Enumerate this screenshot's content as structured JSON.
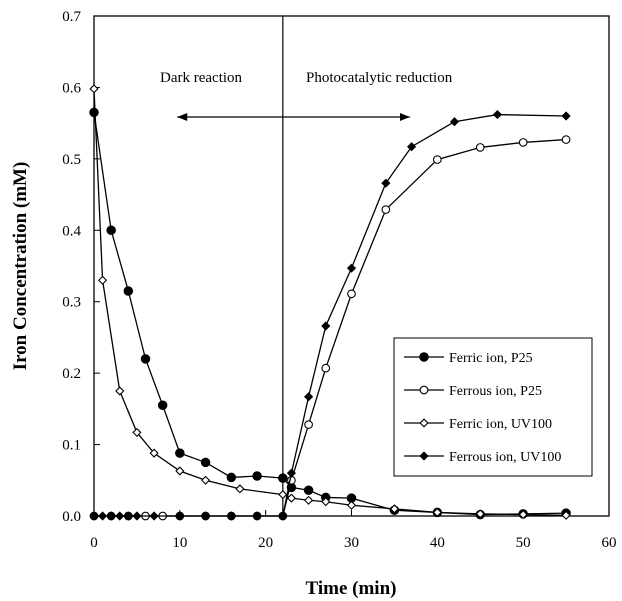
{
  "chart_data": {
    "type": "line",
    "xlabel": "Time (min)",
    "ylabel": "Iron Concentration (mM)",
    "xlim": [
      0,
      60
    ],
    "ylim": [
      0,
      0.7
    ],
    "xticks": [
      "0",
      "10",
      "20",
      "30",
      "40",
      "50",
      "60"
    ],
    "yticks": [
      "0.0",
      "0.1",
      "0.2",
      "0.3",
      "0.4",
      "0.5",
      "0.6",
      "0.7"
    ],
    "grid": false,
    "legend_position": "right",
    "annotations": {
      "dark": "Dark reaction",
      "photo": "Photocatalytic reduction",
      "divider_x": 22
    },
    "series": [
      {
        "name": "Ferric ion, P25",
        "marker": "filled-circle",
        "x": [
          0,
          2,
          4,
          6,
          8,
          10,
          13,
          16,
          19,
          22,
          23,
          25,
          27,
          30,
          35,
          40,
          45,
          50,
          55
        ],
        "y": [
          0.565,
          0.4,
          0.315,
          0.22,
          0.155,
          0.088,
          0.075,
          0.054,
          0.056,
          0.053,
          0.04,
          0.036,
          0.026,
          0.025,
          0.008,
          0.005,
          0.002,
          0.003,
          0.004
        ]
      },
      {
        "name": "Ferrous ion, P25",
        "marker": "open-circle",
        "x": [
          0,
          2,
          4,
          6,
          8,
          10,
          13,
          16,
          19,
          22,
          23,
          25,
          27,
          30,
          34,
          40,
          45,
          50,
          55
        ],
        "y": [
          0,
          0,
          0,
          0,
          0,
          0,
          0,
          0,
          0,
          0,
          0.05,
          0.128,
          0.207,
          0.311,
          0.429,
          0.499,
          0.516,
          0.523,
          0.527
        ]
      },
      {
        "name": "Ferric ion, UV100",
        "marker": "open-diamond",
        "x": [
          0,
          1,
          3,
          5,
          7,
          10,
          13,
          17,
          22,
          23,
          25,
          27,
          30,
          35,
          40,
          45,
          50,
          55
        ],
        "y": [
          0.598,
          0.33,
          0.175,
          0.117,
          0.088,
          0.063,
          0.05,
          0.038,
          0.03,
          0.025,
          0.022,
          0.02,
          0.015,
          0.01,
          0.005,
          0.003,
          0.002,
          0.001
        ]
      },
      {
        "name": "Ferrous ion, UV100",
        "marker": "filled-diamond",
        "x": [
          0,
          1,
          2,
          3,
          4,
          5,
          7,
          10,
          13,
          16,
          19,
          22,
          23,
          25,
          27,
          30,
          34,
          37,
          42,
          47,
          55
        ],
        "y": [
          0,
          0,
          0,
          0,
          0,
          0,
          0,
          0,
          0,
          0,
          0,
          0,
          0.06,
          0.167,
          0.266,
          0.347,
          0.466,
          0.517,
          0.552,
          0.562,
          0.56
        ]
      }
    ]
  }
}
